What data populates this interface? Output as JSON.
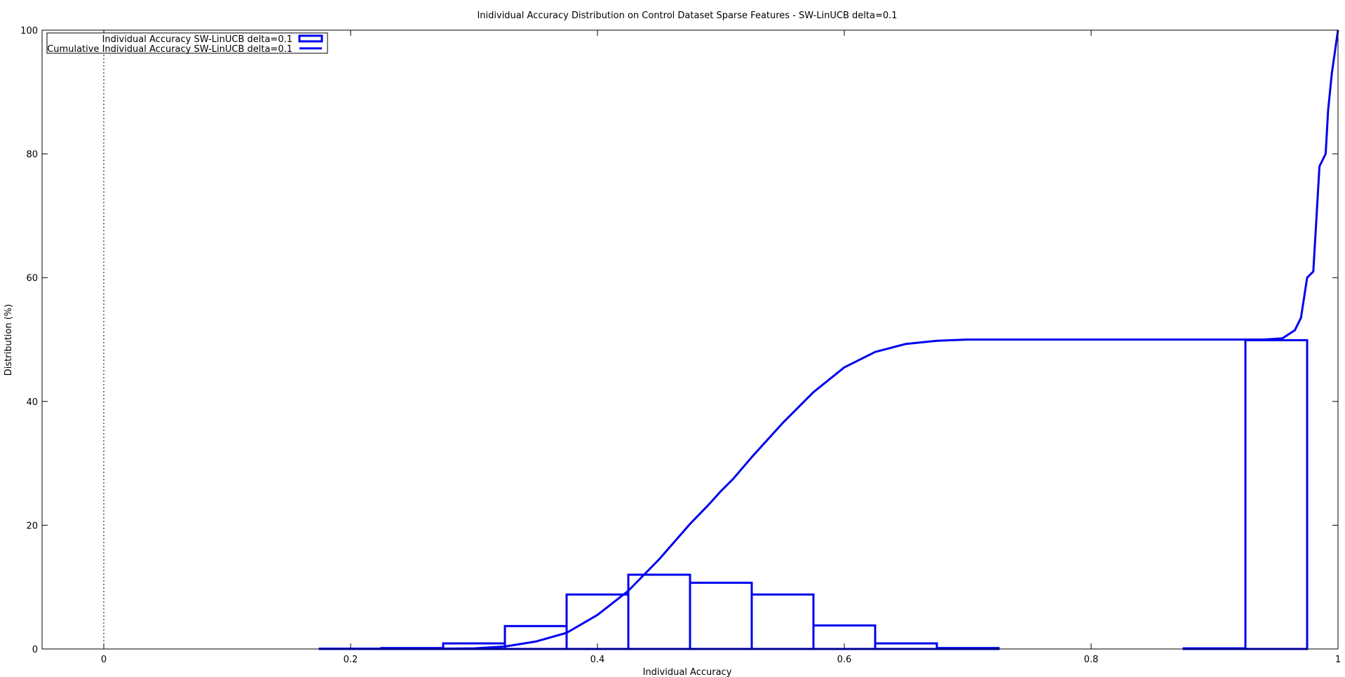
{
  "chart_data": {
    "type": "bar",
    "title": "Inidividual Accuracy Distribution on Control Dataset Sparse Features - SW-LinUCB delta=0.1",
    "xlabel": "Individual Accuracy",
    "ylabel": "Distribution (%)",
    "xlim": [
      -0.05,
      1.0
    ],
    "ylim": [
      0,
      100
    ],
    "x_ticks": [
      0,
      0.2,
      0.4,
      0.6,
      0.8,
      1
    ],
    "x_tick_labels": [
      "0",
      "0.2",
      "0.4",
      "0.6",
      "0.8",
      "1"
    ],
    "y_ticks": [
      0,
      20,
      40,
      60,
      80,
      100
    ],
    "y_tick_labels": [
      "0",
      "20",
      "40",
      "60",
      "80",
      "100"
    ],
    "grid": false,
    "zero_line": true,
    "legend_position": "top-left",
    "series_color": "#0000ee",
    "legend": [
      {
        "label": "Individual Accuracy SW-LinUCB delta=0.1",
        "style": "box"
      },
      {
        "label": "Cumulative Individual Accuracy SW-LinUCB delta=0.1",
        "style": "line"
      }
    ],
    "series": [
      {
        "name": "Individual Accuracy SW-LinUCB delta=0.1",
        "type": "histogram",
        "bins": [
          {
            "x0": 0.175,
            "x1": 0.225,
            "value": 0.05
          },
          {
            "x0": 0.225,
            "x1": 0.275,
            "value": 0.15
          },
          {
            "x0": 0.275,
            "x1": 0.325,
            "value": 0.9
          },
          {
            "x0": 0.325,
            "x1": 0.375,
            "value": 3.7
          },
          {
            "x0": 0.375,
            "x1": 0.425,
            "value": 8.8
          },
          {
            "x0": 0.425,
            "x1": 0.475,
            "value": 12.0
          },
          {
            "x0": 0.475,
            "x1": 0.525,
            "value": 10.7
          },
          {
            "x0": 0.525,
            "x1": 0.575,
            "value": 8.8
          },
          {
            "x0": 0.575,
            "x1": 0.625,
            "value": 3.8
          },
          {
            "x0": 0.625,
            "x1": 0.675,
            "value": 0.9
          },
          {
            "x0": 0.675,
            "x1": 0.725,
            "value": 0.15
          },
          {
            "x0": 0.875,
            "x1": 0.925,
            "value": 0.1
          },
          {
            "x0": 0.925,
            "x1": 0.975,
            "value": 49.9
          }
        ]
      },
      {
        "name": "Cumulative Individual Accuracy SW-LinUCB delta=0.1",
        "type": "line",
        "x": [
          0.175,
          0.25,
          0.3,
          0.325,
          0.35,
          0.375,
          0.4,
          0.425,
          0.45,
          0.475,
          0.49,
          0.5,
          0.51,
          0.525,
          0.55,
          0.575,
          0.6,
          0.625,
          0.65,
          0.675,
          0.7,
          0.725,
          0.75,
          0.8,
          0.85,
          0.9,
          0.94,
          0.955,
          0.965,
          0.97,
          0.975,
          0.98,
          0.985,
          0.99,
          0.992,
          0.995,
          1.0
        ],
        "y": [
          0,
          0,
          0.1,
          0.4,
          1.2,
          2.6,
          5.5,
          9.4,
          14.5,
          20.2,
          23.3,
          25.5,
          27.5,
          31.0,
          36.5,
          41.5,
          45.5,
          48.0,
          49.3,
          49.8,
          50.0,
          50.0,
          50.0,
          50.0,
          50.0,
          50.0,
          50.0,
          50.2,
          51.5,
          53.5,
          60.0,
          61.0,
          78.0,
          80.0,
          87.0,
          93.0,
          100.0
        ]
      }
    ]
  }
}
